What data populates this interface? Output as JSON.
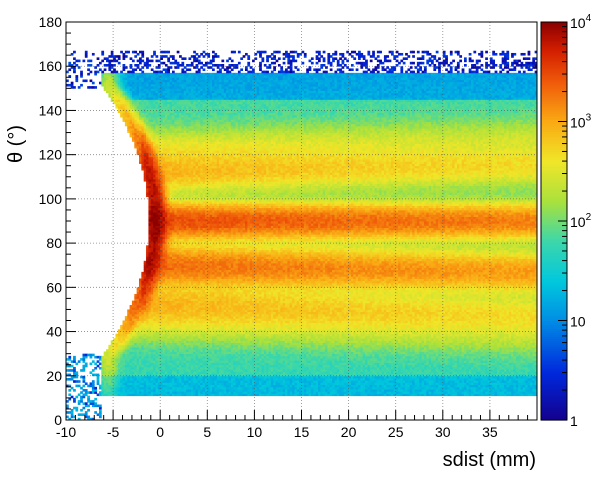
{
  "chart_data": {
    "type": "heatmap",
    "title": "",
    "xlabel": "sdist  (mm)",
    "ylabel": "θ  (°)",
    "xlim": [
      -10,
      40
    ],
    "ylim": [
      0,
      180
    ],
    "x_ticks": [
      "-10",
      "-5",
      "0",
      "5",
      "10",
      "15",
      "20",
      "25",
      "30",
      "35"
    ],
    "y_ticks": [
      "0",
      "20",
      "40",
      "60",
      "80",
      "100",
      "120",
      "140",
      "160",
      "180"
    ],
    "grid": true,
    "colorbar": {
      "scale": "log",
      "range": [
        1,
        10000
      ],
      "tick_labels": [
        {
          "base": "1",
          "exp": ""
        },
        {
          "base": "10",
          "exp": ""
        },
        {
          "base": "10",
          "exp": "2"
        },
        {
          "base": "10",
          "exp": "3"
        },
        {
          "base": "10",
          "exp": "4"
        }
      ]
    },
    "bins": {
      "x_bin_width_mm": 0.25,
      "y_bin_width_deg": 1
    },
    "bands": [
      {
        "theta": 90,
        "peak_counts": 3000
      },
      {
        "theta": 70,
        "peak_counts": 2000
      },
      {
        "theta": 112,
        "peak_counts": 700
      },
      {
        "theta": 53,
        "peak_counts": 700
      },
      {
        "theta": 122,
        "peak_counts": 300
      },
      {
        "theta": 45,
        "peak_counts": 200
      }
    ],
    "ridge": {
      "x_min_mm": -5.5,
      "x_at_theta_90_mm": -0.5,
      "peak_counts": 8000
    },
    "occupancy": {
      "theta_top_deg": 155,
      "theta_top_noise_deg": 167,
      "theta_bottom_deg": 12
    }
  }
}
